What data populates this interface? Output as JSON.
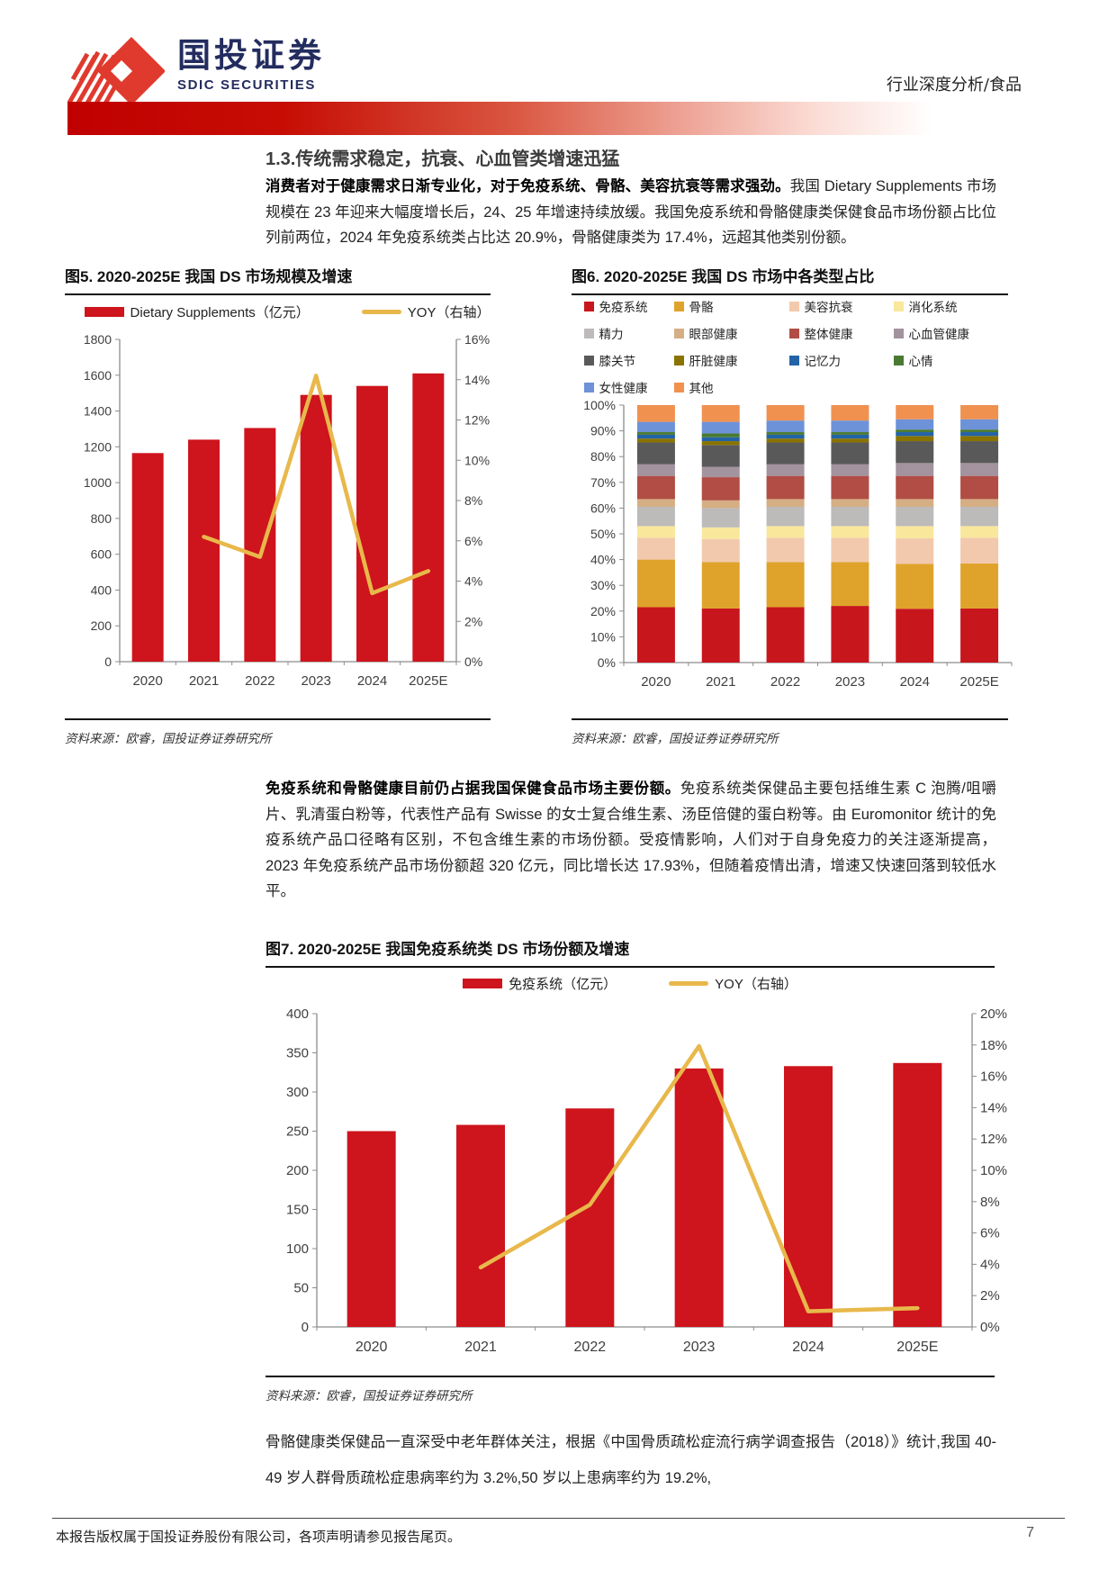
{
  "header": {
    "logo_cn": "国投证券",
    "logo_en": "SDIC SECURITIES",
    "doc_type": "行业深度分析/食品",
    "brand_navy": "#232c5f",
    "brand_red": "#e03a2e"
  },
  "section": {
    "heading": "1.3.传统需求稳定，抗衰、心血管类增速迅猛",
    "para1_bold": "消费者对于健康需求日渐专业化，对于免疫系统、骨骼、美容抗衰等需求强劲。",
    "para1_rest": "我国 Dietary Supplements 市场规模在 23 年迎来大幅度增长后，24、25 年增速持续放缓。我国免疫系统和骨骼健康类保健食品市场份额占比位列前两位，2024 年免疫系统类占比达 20.9%，骨骼健康类为 17.4%，远超其他类别份额。",
    "para2_bold": "免疫系统和骨骼健康目前仍占据我国保健食品市场主要份额。",
    "para2_rest": "免疫系统类保健品主要包括维生素 C 泡腾/咀嚼片、乳清蛋白粉等，代表性产品有 Swisse 的女士复合维生素、汤臣倍健的蛋白粉等。由 Euromonitor 统计的免疫系统产品口径略有区别，不包含维生素的市场份额。受疫情影响，人们对于自身免疫力的关注逐渐提高，2023 年免疫系统产品市场份额超 320 亿元，同比增长达 17.93%，但随着疫情出清，增速又快速回落到较低水平。",
    "para3": "骨骼健康类保健品一直深受中老年群体关注，根据《中国骨质疏松症流行病学调查报告（2018）》统计,我国 40-49 岁人群骨质疏松症患病率约为 3.2%,50 岁以上患病率约为 19.2%,"
  },
  "figures": {
    "fig5_title": "图5. 2020-2025E 我国 DS 市场规模及增速",
    "fig6_title": "图6. 2020-2025E 我国 DS 市场中各类型占比",
    "fig7_title": "图7. 2020-2025E 我国免疫系统类 DS 市场份额及增速",
    "source": "资料来源：欧睿，国投证券证券研究所"
  },
  "footer": {
    "disclaimer": "本报告版权属于国投证券股份有限公司，各项声明请参见报告尾页。",
    "page_number": "7"
  },
  "chart_data": [
    {
      "id": "fig5",
      "type": "bar",
      "subtype": "bar+line-combo",
      "title": "图5. 2020-2025E 我国 DS 市场规模及增速",
      "categories": [
        "2020",
        "2021",
        "2022",
        "2023",
        "2024",
        "2025E"
      ],
      "series": [
        {
          "name": "Dietary Supplements（亿元）",
          "kind": "bar",
          "axis": "left",
          "color": "#ce141c",
          "values": [
            1165,
            1240,
            1305,
            1490,
            1540,
            1610
          ]
        },
        {
          "name": "YOY（右轴）",
          "kind": "line",
          "axis": "right",
          "color": "#e8b84b",
          "values": [
            null,
            6.2,
            5.2,
            14.2,
            3.4,
            4.5
          ]
        }
      ],
      "left_axis": {
        "min": 0,
        "max": 1800,
        "step": 200,
        "suffix": ""
      },
      "right_axis": {
        "min": 0,
        "max": 16,
        "step": 2,
        "suffix": "%"
      },
      "grid": false,
      "legend_position": "top"
    },
    {
      "id": "fig6",
      "type": "bar",
      "subtype": "stacked-100",
      "title": "图6. 2020-2025E 我国 DS 市场中各类型占比",
      "categories": [
        "2020",
        "2021",
        "2022",
        "2023",
        "2024",
        "2025E"
      ],
      "series": [
        {
          "name": "免疫系统",
          "color": "#c8161d",
          "values": [
            21.5,
            21.0,
            21.5,
            22.0,
            20.9,
            21.0
          ]
        },
        {
          "name": "骨骼",
          "color": "#dfa32b",
          "values": [
            18.5,
            18.0,
            17.5,
            17.0,
            17.4,
            17.5
          ]
        },
        {
          "name": "美容抗衰",
          "color": "#f2c9ac",
          "values": [
            8.5,
            9.0,
            9.5,
            9.5,
            10.0,
            10.0
          ]
        },
        {
          "name": "消化系统",
          "color": "#f9e79b",
          "values": [
            4.5,
            4.5,
            4.5,
            4.5,
            4.7,
            4.5
          ]
        },
        {
          "name": "精力",
          "color": "#bdbaba",
          "values": [
            7.5,
            7.5,
            7.5,
            7.5,
            7.5,
            7.5
          ]
        },
        {
          "name": "眼部健康",
          "color": "#d6ae84",
          "values": [
            3.0,
            3.0,
            3.0,
            3.0,
            3.0,
            3.0
          ]
        },
        {
          "name": "整体健康",
          "color": "#b14d44",
          "values": [
            9.0,
            9.0,
            9.0,
            9.0,
            9.0,
            9.0
          ]
        },
        {
          "name": "心血管健康",
          "color": "#a3939e",
          "values": [
            4.5,
            4.0,
            4.5,
            4.5,
            5.0,
            5.0
          ]
        },
        {
          "name": "膝关节",
          "color": "#595959",
          "values": [
            8.5,
            8.5,
            8.5,
            8.5,
            8.5,
            8.5
          ]
        },
        {
          "name": "肝脏健康",
          "color": "#8a7300",
          "values": [
            1.5,
            1.5,
            1.5,
            1.5,
            2.0,
            2.0
          ]
        },
        {
          "name": "记忆力",
          "color": "#2263a8",
          "values": [
            1.5,
            1.5,
            1.5,
            1.5,
            1.5,
            1.5
          ]
        },
        {
          "name": "心情",
          "color": "#4a7a32",
          "values": [
            1.0,
            1.5,
            1.0,
            1.0,
            1.0,
            1.0
          ]
        },
        {
          "name": "女性健康",
          "color": "#6d92d8",
          "values": [
            4.0,
            4.5,
            4.5,
            4.5,
            4.0,
            4.0
          ]
        },
        {
          "name": "其他",
          "color": "#f09150",
          "values": [
            6.5,
            6.5,
            6.0,
            6.0,
            5.5,
            5.5
          ]
        }
      ],
      "y_axis": {
        "min": 0,
        "max": 100,
        "step": 10,
        "suffix": "%"
      },
      "grid": false,
      "legend_position": "top"
    },
    {
      "id": "fig7",
      "type": "bar",
      "subtype": "bar+line-combo",
      "title": "图7. 2020-2025E 我国免疫系统类 DS 市场份额及增速",
      "categories": [
        "2020",
        "2021",
        "2022",
        "2023",
        "2024",
        "2025E"
      ],
      "series": [
        {
          "name": "免疫系统（亿元）",
          "kind": "bar",
          "axis": "left",
          "color": "#ce141c",
          "values": [
            250,
            258,
            279,
            330,
            333,
            337
          ]
        },
        {
          "name": "YOY（右轴）",
          "kind": "line",
          "axis": "right",
          "color": "#e8b84b",
          "values": [
            null,
            3.8,
            7.8,
            17.93,
            1.0,
            1.2
          ]
        }
      ],
      "left_axis": {
        "min": 0,
        "max": 400,
        "step": 50,
        "suffix": ""
      },
      "right_axis": {
        "min": 0,
        "max": 20,
        "step": 2,
        "suffix": "%"
      },
      "grid": false,
      "legend_position": "top"
    }
  ]
}
